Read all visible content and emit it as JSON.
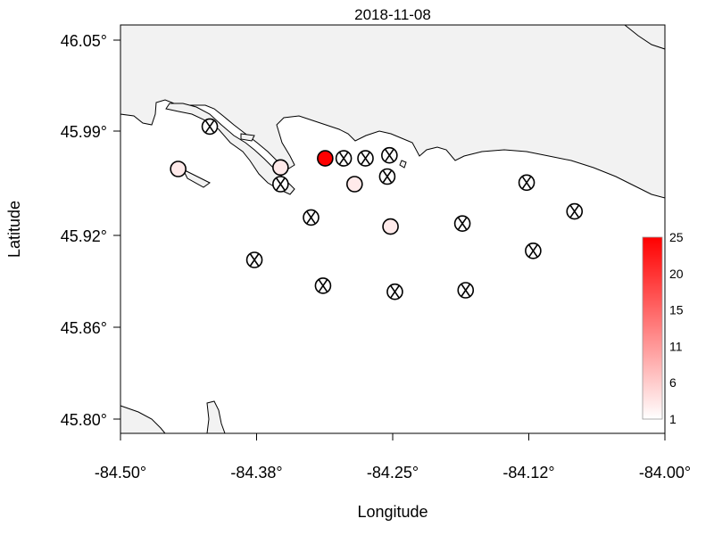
{
  "chart_data": {
    "type": "scatter",
    "title": "2018-11-08",
    "xlabel": "Longitude",
    "ylabel": "Latitude",
    "xlim": [
      -84.5,
      -84.0
    ],
    "ylim": [
      45.79,
      46.07
    ],
    "x_ticks": [
      -84.5,
      -84.375,
      -84.25,
      -84.125,
      -84.0
    ],
    "x_tick_labels": [
      "-84.50°",
      "-84.38°",
      "-84.25°",
      "-84.12°",
      "-84.00°"
    ],
    "y_ticks": [
      45.8,
      45.86,
      45.92,
      45.99,
      46.05
    ],
    "y_tick_labels": [
      "45.80°",
      "45.86°",
      "45.92°",
      "45.99°",
      "46.05°"
    ],
    "grid": false,
    "legend": {
      "type": "colorbar",
      "placement": "right",
      "range": [
        1,
        25
      ],
      "tick_labels": [
        "1",
        "6",
        "11",
        "15",
        "20",
        "25"
      ],
      "color_low": "#ffffff",
      "color_high": "#ff0000"
    },
    "points": [
      {
        "lon": -84.447,
        "lat": 45.965,
        "value": 3,
        "marker": "circle"
      },
      {
        "lon": -84.418,
        "lat": 45.993,
        "value": null,
        "marker": "x"
      },
      {
        "lon": -84.353,
        "lat": 45.966,
        "value": 3,
        "marker": "circle"
      },
      {
        "lon": -84.353,
        "lat": 45.955,
        "value": null,
        "marker": "x"
      },
      {
        "lon": -84.312,
        "lat": 45.972,
        "value": 25,
        "marker": "circle"
      },
      {
        "lon": -84.295,
        "lat": 45.972,
        "value": null,
        "marker": "x"
      },
      {
        "lon": -84.275,
        "lat": 45.972,
        "value": null,
        "marker": "x"
      },
      {
        "lon": -84.253,
        "lat": 45.974,
        "value": null,
        "marker": "x"
      },
      {
        "lon": -84.255,
        "lat": 45.96,
        "value": null,
        "marker": "x"
      },
      {
        "lon": -84.285,
        "lat": 45.955,
        "value": 3,
        "marker": "circle"
      },
      {
        "lon": -84.325,
        "lat": 45.933,
        "value": null,
        "marker": "x"
      },
      {
        "lon": -84.252,
        "lat": 45.927,
        "value": 3,
        "marker": "circle"
      },
      {
        "lon": -84.186,
        "lat": 45.929,
        "value": null,
        "marker": "x"
      },
      {
        "lon": -84.127,
        "lat": 45.956,
        "value": null,
        "marker": "x"
      },
      {
        "lon": -84.083,
        "lat": 45.937,
        "value": null,
        "marker": "x"
      },
      {
        "lon": -84.121,
        "lat": 45.911,
        "value": null,
        "marker": "x"
      },
      {
        "lon": -84.377,
        "lat": 45.905,
        "value": null,
        "marker": "x"
      },
      {
        "lon": -84.314,
        "lat": 45.888,
        "value": null,
        "marker": "x"
      },
      {
        "lon": -84.248,
        "lat": 45.884,
        "value": null,
        "marker": "x"
      },
      {
        "lon": -84.183,
        "lat": 45.885,
        "value": null,
        "marker": "x"
      }
    ],
    "colors": {
      "land": "#f2f2f2",
      "coastline": "#000000",
      "water": "#ffffff"
    }
  }
}
